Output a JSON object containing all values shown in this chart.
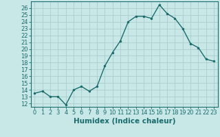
{
  "x": [
    0,
    1,
    2,
    3,
    4,
    5,
    6,
    7,
    8,
    9,
    10,
    11,
    12,
    13,
    14,
    15,
    16,
    17,
    18,
    19,
    20,
    21,
    22,
    23
  ],
  "y": [
    13.5,
    13.8,
    13.0,
    13.0,
    11.8,
    14.0,
    14.5,
    13.8,
    14.5,
    17.5,
    19.5,
    21.2,
    24.0,
    24.8,
    24.8,
    24.5,
    26.5,
    25.2,
    24.5,
    23.0,
    20.8,
    20.2,
    18.5,
    18.2
  ],
  "line_color": "#1a6b6b",
  "marker": "o",
  "marker_size": 2.0,
  "bg_color": "#c8e8e8",
  "grid_color": "#aacccc",
  "xlabel": "Humidex (Indice chaleur)",
  "xlim": [
    -0.5,
    23.5
  ],
  "ylim": [
    11.5,
    27
  ],
  "yticks": [
    12,
    13,
    14,
    15,
    16,
    17,
    18,
    19,
    20,
    21,
    22,
    23,
    24,
    25,
    26
  ],
  "xticks": [
    0,
    1,
    2,
    3,
    4,
    5,
    6,
    7,
    8,
    9,
    10,
    11,
    12,
    13,
    14,
    15,
    16,
    17,
    18,
    19,
    20,
    21,
    22,
    23
  ],
  "tick_color": "#1a6b6b",
  "label_fontsize": 7.5,
  "tick_fontsize": 6.0,
  "axis_color": "#1a6b6b",
  "line_width": 1.0
}
